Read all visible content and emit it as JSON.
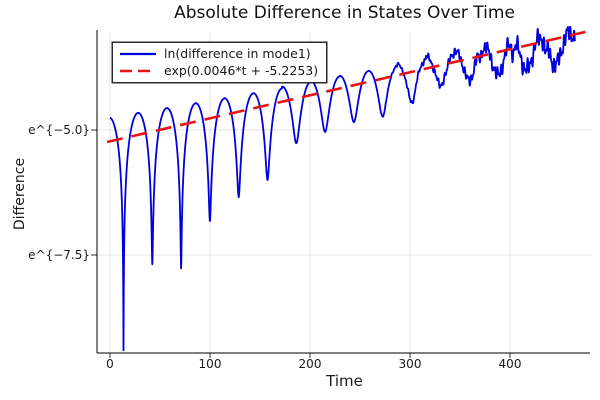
{
  "chart_data": {
    "type": "line",
    "title": "Absolute Difference in States Over Time",
    "xlabel": "Time",
    "ylabel": "Difference",
    "x_ticks": [
      0,
      100,
      200,
      300,
      400
    ],
    "y_ticks": [
      {
        "label": "e^{−5.0}",
        "ln_value": -5.0
      },
      {
        "label": "e^{−7.5}",
        "ln_value": -7.5
      }
    ],
    "xlim": [
      -13,
      482
    ],
    "ylim_ln": [
      -9.46,
      -3.06
    ],
    "grid": true,
    "legend_position": "top-left",
    "colors": {
      "series1": "#0000dd",
      "series2": "#e81414",
      "grid": "#e4e4e4",
      "axis": "#000000",
      "text": "#1a1a1a"
    },
    "series": [
      {
        "name": "ln(difference in mode1)",
        "color": "#0000dd",
        "style": "solid",
        "description": "ln|difference| of mode 1: oscillating trace with sharp cusp minima every ~28.8 time units (first near t=13.5); hump peaks follow ln-envelope = 0.0033*t - 4.75; cusp depth shrinks from ~4.6 ln-units at t=13 to ~0.5 by t=300, after which the trace becomes jagged noise hugging the envelope.",
        "params": {
          "t_start": 0,
          "t_end": 465,
          "envelope_slope": 0.0033,
          "envelope_intercept": -4.75,
          "dip_period": 28.8,
          "first_dip_t": 13.5,
          "dip_depth_start": 5.2,
          "dip_depth_decay_tau": 135,
          "dip_depth_min": 0.45,
          "dip_depth_max": 4.7,
          "noise_onset_t": 265,
          "noise_max_amplitude": 0.17
        }
      },
      {
        "name": "exp(0.0046*t + -5.2253)",
        "color": "#e81414",
        "style": "dashed",
        "fit": {
          "slope": 0.0046,
          "intercept": -5.2253
        },
        "params": {
          "t_start": -3,
          "t_end": 476
        }
      }
    ]
  }
}
